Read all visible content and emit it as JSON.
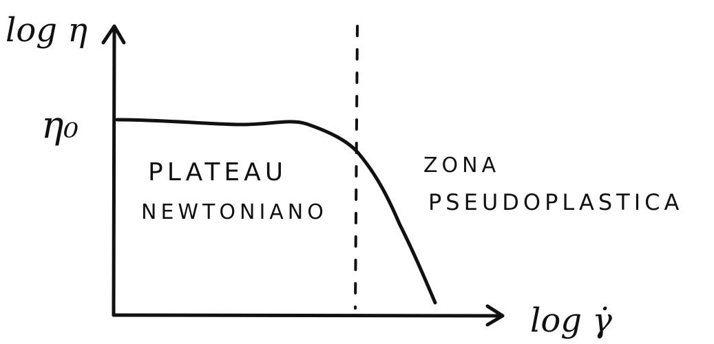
{
  "diagram": {
    "y_axis_label": "log η",
    "x_axis_label": "log γ̇",
    "y_tick_label": "η₀",
    "region_left": {
      "line1": "PLATEAU",
      "line2": "NEWTONIANO"
    },
    "region_right": {
      "line1": "ZONA",
      "line2": "PSEUDOPLASTICA"
    },
    "ink_color": "#111111",
    "background_color": "#ffffff"
  }
}
